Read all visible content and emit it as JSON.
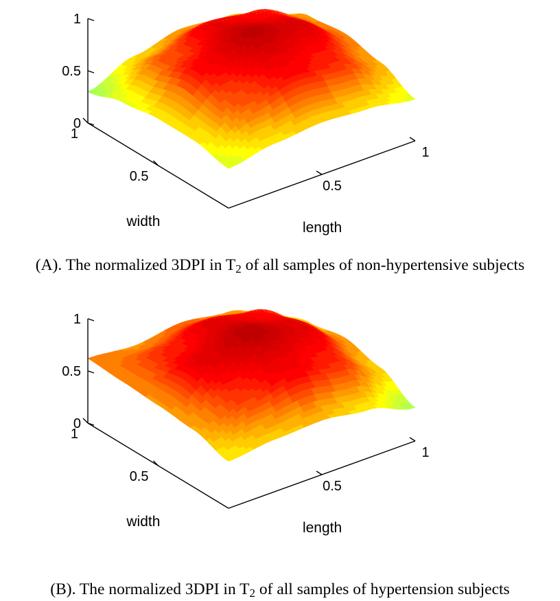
{
  "chart_data": [
    {
      "type": "surface",
      "panel_id": "A",
      "caption": {
        "before": "(A). The normalized 3DPI in T",
        "subscript": "2",
        "after": " of all samples of non-hypertensive subjects"
      },
      "xlabel": "length",
      "ylabel": "width",
      "zlabel": "",
      "xlim": [
        0,
        1
      ],
      "ylim": [
        0,
        1
      ],
      "zlim": [
        0,
        1
      ],
      "x_ticks": [
        "0.5",
        "1"
      ],
      "y_ticks": [
        "0.5",
        "1"
      ],
      "z_ticks": [
        "0",
        "0.5",
        "1"
      ],
      "grid": false,
      "colormap": "jet",
      "colormap_stops": [
        "#00007f",
        "#0000ff",
        "#00ffff",
        "#ffff00",
        "#ff0000",
        "#7f0000"
      ],
      "z_grid": {
        "length": [
          0,
          0.25,
          0.5,
          0.75,
          1
        ],
        "width": [
          0,
          0.25,
          0.5,
          0.75,
          1
        ],
        "z": [
          [
            0.38,
            0.46,
            0.5,
            0.47,
            0.4
          ],
          [
            0.45,
            0.68,
            0.8,
            0.74,
            0.55
          ],
          [
            0.45,
            0.8,
            0.96,
            0.88,
            0.62
          ],
          [
            0.4,
            0.68,
            0.84,
            0.78,
            0.58
          ],
          [
            0.3,
            0.48,
            0.58,
            0.54,
            0.42
          ]
        ]
      }
    },
    {
      "type": "surface",
      "panel_id": "B",
      "caption": {
        "before": "(B). The normalized 3DPI in T",
        "subscript": "2",
        "after": " of all samples of hypertension subjects"
      },
      "xlabel": "length",
      "ylabel": "width",
      "zlabel": "",
      "xlim": [
        0,
        1
      ],
      "ylim": [
        0,
        1
      ],
      "zlim": [
        0,
        1
      ],
      "x_ticks": [
        "0.5",
        "1"
      ],
      "y_ticks": [
        "0.5",
        "1"
      ],
      "z_ticks": [
        "0",
        "0.5",
        "1"
      ],
      "grid": false,
      "colormap": "jet",
      "colormap_stops": [
        "#00007f",
        "#0000ff",
        "#00ffff",
        "#ffff00",
        "#ff0000",
        "#7f0000"
      ],
      "z_grid": {
        "length": [
          0,
          0.25,
          0.5,
          0.75,
          1
        ],
        "width": [
          0,
          0.25,
          0.5,
          0.75,
          1
        ],
        "z": [
          [
            0.45,
            0.5,
            0.52,
            0.46,
            0.32
          ],
          [
            0.55,
            0.72,
            0.82,
            0.74,
            0.5
          ],
          [
            0.58,
            0.86,
            0.97,
            0.87,
            0.58
          ],
          [
            0.6,
            0.74,
            0.86,
            0.78,
            0.52
          ],
          [
            0.62,
            0.58,
            0.64,
            0.58,
            0.42
          ]
        ]
      }
    }
  ]
}
